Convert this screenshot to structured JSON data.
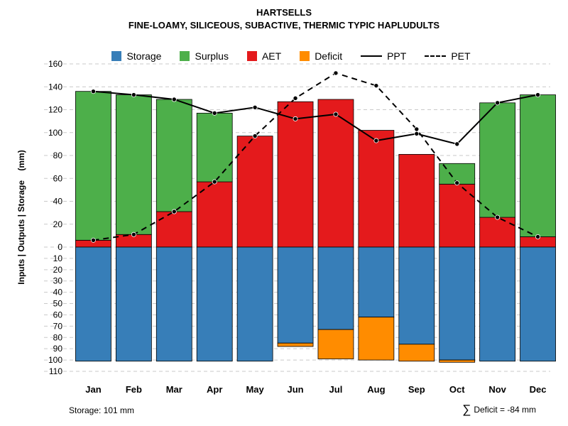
{
  "title": "HARTSELLS",
  "subtitle": "FINE-LOAMY, SILICEOUS, SUBACTIVE, THERMIC TYPIC HAPLUDULTS",
  "y_axis_label": "Inputs | Outputs | Storage    (mm)",
  "footer": {
    "storage_note": "Storage: 101 mm",
    "sigma": "∑",
    "deficit_text": "Deficit = -84 mm"
  },
  "colors": {
    "storage": "#377EB8",
    "surplus": "#4DAF4A",
    "aet": "#E41A1C",
    "deficit": "#FF8C00",
    "line": "#000000",
    "grid": "#C9C9C9"
  },
  "legend": [
    {
      "label": "Storage",
      "type": "swatch",
      "color_key": "storage"
    },
    {
      "label": "Surplus",
      "type": "swatch",
      "color_key": "surplus"
    },
    {
      "label": "AET",
      "type": "swatch",
      "color_key": "aet"
    },
    {
      "label": "Deficit",
      "type": "swatch",
      "color_key": "deficit"
    },
    {
      "label": "PPT",
      "type": "line-solid"
    },
    {
      "label": "PET",
      "type": "line-dashed"
    }
  ],
  "chart_data": {
    "type": "bar",
    "title": "HARTSELLS water balance",
    "months": [
      "Jan",
      "Feb",
      "Mar",
      "Apr",
      "May",
      "Jun",
      "Jul",
      "Aug",
      "Sep",
      "Oct",
      "Nov",
      "Dec"
    ],
    "series": [
      {
        "name": "AET",
        "values": [
          6,
          11,
          31,
          57,
          97,
          127,
          129,
          102,
          81,
          55,
          26,
          9
        ]
      },
      {
        "name": "Surplus",
        "values": [
          130,
          122,
          98,
          60,
          0,
          0,
          0,
          0,
          0,
          18,
          100,
          124
        ]
      },
      {
        "name": "Storage",
        "values": [
          101,
          101,
          101,
          101,
          101,
          85,
          73,
          62,
          86,
          100,
          101,
          101
        ]
      },
      {
        "name": "Deficit",
        "values": [
          0,
          0,
          0,
          0,
          0,
          3,
          26,
          38,
          15,
          2,
          0,
          0
        ]
      },
      {
        "name": "PPT",
        "values": [
          136,
          133,
          129,
          117,
          122,
          112,
          116,
          93,
          99,
          90,
          126,
          133
        ]
      },
      {
        "name": "PET",
        "values": [
          6,
          11,
          31,
          57,
          97,
          130,
          152,
          141,
          103,
          56,
          26,
          9
        ]
      }
    ],
    "y_top": {
      "max": 160,
      "ticks": [
        160,
        140,
        120,
        100,
        80,
        60,
        40,
        20,
        0
      ]
    },
    "y_bottom": {
      "max": 110,
      "ticks": [
        10,
        20,
        30,
        40,
        50,
        60,
        70,
        80,
        90,
        100,
        110
      ]
    },
    "grid": "dashed-horizontal",
    "legend_position": "top-center"
  }
}
